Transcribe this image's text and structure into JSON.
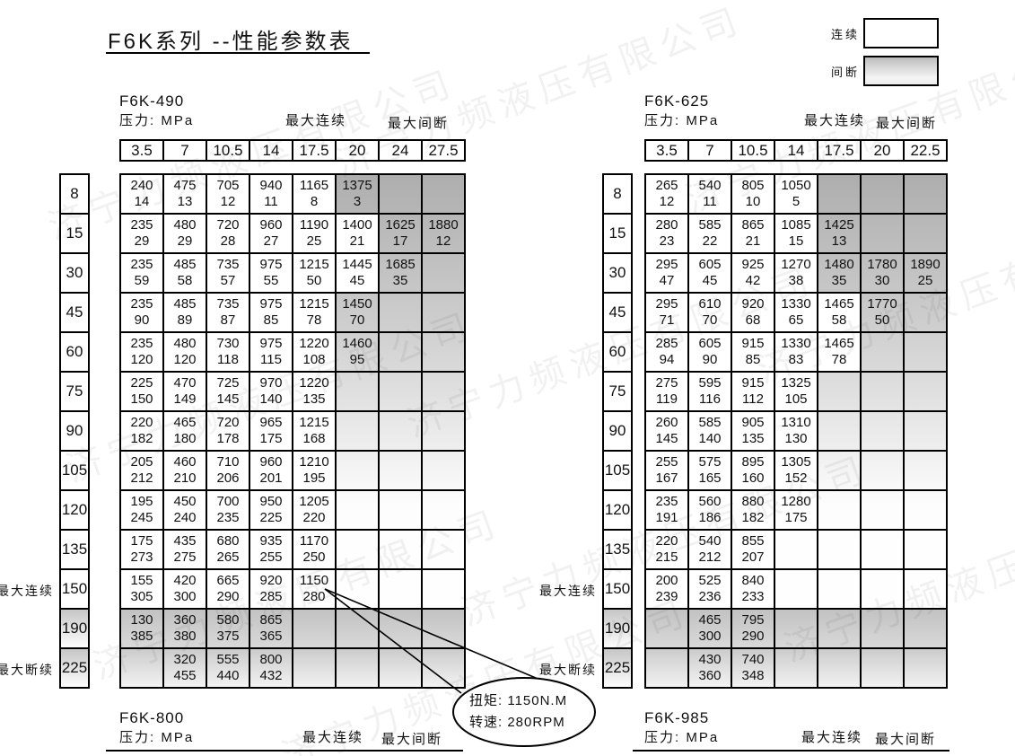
{
  "title": "F6K系列 --性能参数表",
  "legend": {
    "continuous": "连续",
    "intermittent": "间断"
  },
  "labels": {
    "pressure": "压力: MPa",
    "max_continuous": "最大连续",
    "max_intermittent": "最大间断",
    "row_max_continuous": "最大连续",
    "row_max_interrupt": "最大断续"
  },
  "callout": {
    "torque": "扭矩: 1150N.M",
    "speed": "转速: 280RPM"
  },
  "watermark": "济宁力频液压有限公司",
  "tables": [
    {
      "name": "F6K-490",
      "columns": [
        "3.5",
        "7",
        "10.5",
        "14",
        "17.5",
        "20",
        "24",
        "27.5"
      ],
      "rows": [
        {
          "speed": "8",
          "white": 5,
          "cells": [
            [
              "240",
              "14"
            ],
            [
              "475",
              "13"
            ],
            [
              "705",
              "12"
            ],
            [
              "940",
              "11"
            ],
            [
              "1165",
              "8"
            ],
            [
              "1375",
              "3"
            ]
          ]
        },
        {
          "speed": "15",
          "white": 6,
          "cells": [
            [
              "235",
              "29"
            ],
            [
              "480",
              "29"
            ],
            [
              "720",
              "28"
            ],
            [
              "960",
              "27"
            ],
            [
              "1190",
              "25"
            ],
            [
              "1400",
              "21"
            ],
            [
              "1625",
              "17"
            ],
            [
              "1880",
              "12"
            ]
          ]
        },
        {
          "speed": "30",
          "white": 6,
          "cells": [
            [
              "235",
              "59"
            ],
            [
              "485",
              "58"
            ],
            [
              "735",
              "57"
            ],
            [
              "975",
              "55"
            ],
            [
              "1215",
              "50"
            ],
            [
              "1445",
              "45"
            ],
            [
              "1685",
              "35"
            ]
          ]
        },
        {
          "speed": "45",
          "white": 5,
          "cells": [
            [
              "235",
              "90"
            ],
            [
              "485",
              "89"
            ],
            [
              "735",
              "87"
            ],
            [
              "975",
              "85"
            ],
            [
              "1215",
              "78"
            ],
            [
              "1450",
              "70"
            ]
          ]
        },
        {
          "speed": "60",
          "white": 5,
          "cells": [
            [
              "235",
              "120"
            ],
            [
              "480",
              "120"
            ],
            [
              "730",
              "118"
            ],
            [
              "975",
              "115"
            ],
            [
              "1220",
              "108"
            ],
            [
              "1460",
              "95"
            ]
          ]
        },
        {
          "speed": "75",
          "white": 5,
          "cells": [
            [
              "225",
              "150"
            ],
            [
              "470",
              "149"
            ],
            [
              "725",
              "145"
            ],
            [
              "970",
              "140"
            ],
            [
              "1220",
              "135"
            ]
          ]
        },
        {
          "speed": "90",
          "white": 5,
          "cells": [
            [
              "220",
              "182"
            ],
            [
              "465",
              "180"
            ],
            [
              "720",
              "178"
            ],
            [
              "965",
              "175"
            ],
            [
              "1215",
              "168"
            ]
          ]
        },
        {
          "speed": "105",
          "white": 5,
          "cells": [
            [
              "205",
              "212"
            ],
            [
              "460",
              "210"
            ],
            [
              "710",
              "206"
            ],
            [
              "960",
              "201"
            ],
            [
              "1210",
              "195"
            ]
          ]
        },
        {
          "speed": "120",
          "white": 5,
          "cells": [
            [
              "195",
              "245"
            ],
            [
              "450",
              "240"
            ],
            [
              "700",
              "235"
            ],
            [
              "950",
              "225"
            ],
            [
              "1205",
              "220"
            ]
          ]
        },
        {
          "speed": "135",
          "white": 5,
          "cells": [
            [
              "175",
              "273"
            ],
            [
              "435",
              "275"
            ],
            [
              "680",
              "265"
            ],
            [
              "935",
              "255"
            ],
            [
              "1170",
              "250"
            ]
          ]
        },
        {
          "speed": "150",
          "white": 5,
          "cells": [
            [
              "155",
              "305"
            ],
            [
              "420",
              "300"
            ],
            [
              "665",
              "290"
            ],
            [
              "920",
              "285"
            ],
            [
              "1150",
              "280"
            ]
          ]
        },
        {
          "speed": "190",
          "white": 0,
          "band": true,
          "cells": [
            [
              "130",
              "385"
            ],
            [
              "360",
              "380"
            ],
            [
              "580",
              "375"
            ],
            [
              "865",
              "365"
            ]
          ]
        },
        {
          "speed": "225",
          "white": 0,
          "band": true,
          "cells": [
            null,
            [
              "320",
              "455"
            ],
            [
              "555",
              "440"
            ],
            [
              "800",
              "432"
            ]
          ]
        }
      ]
    },
    {
      "name": "F6K-625",
      "columns": [
        "3.5",
        "7",
        "10.5",
        "14",
        "17.5",
        "20",
        "22.5"
      ],
      "rows": [
        {
          "speed": "8",
          "white": 4,
          "cells": [
            [
              "265",
              "12"
            ],
            [
              "540",
              "11"
            ],
            [
              "805",
              "10"
            ],
            [
              "1050",
              "5"
            ]
          ]
        },
        {
          "speed": "15",
          "white": 4,
          "cells": [
            [
              "280",
              "23"
            ],
            [
              "585",
              "22"
            ],
            [
              "865",
              "21"
            ],
            [
              "1085",
              "15"
            ],
            [
              "1425",
              "13"
            ]
          ]
        },
        {
          "speed": "30",
          "white": 4,
          "cells": [
            [
              "295",
              "47"
            ],
            [
              "605",
              "45"
            ],
            [
              "925",
              "42"
            ],
            [
              "1270",
              "38"
            ],
            [
              "1480",
              "35"
            ],
            [
              "1780",
              "30"
            ],
            [
              "1890",
              "25"
            ]
          ]
        },
        {
          "speed": "45",
          "white": 5,
          "cells": [
            [
              "295",
              "71"
            ],
            [
              "610",
              "70"
            ],
            [
              "920",
              "68"
            ],
            [
              "1330",
              "65"
            ],
            [
              "1465",
              "58"
            ],
            [
              "1770",
              "50"
            ]
          ]
        },
        {
          "speed": "60",
          "white": 5,
          "cells": [
            [
              "285",
              "94"
            ],
            [
              "605",
              "90"
            ],
            [
              "915",
              "85"
            ],
            [
              "1330",
              "83"
            ],
            [
              "1465",
              "78"
            ]
          ]
        },
        {
          "speed": "75",
          "white": 4,
          "cells": [
            [
              "275",
              "119"
            ],
            [
              "595",
              "116"
            ],
            [
              "915",
              "112"
            ],
            [
              "1325",
              "105"
            ]
          ]
        },
        {
          "speed": "90",
          "white": 4,
          "cells": [
            [
              "260",
              "145"
            ],
            [
              "585",
              "140"
            ],
            [
              "905",
              "135"
            ],
            [
              "1310",
              "130"
            ]
          ]
        },
        {
          "speed": "105",
          "white": 4,
          "cells": [
            [
              "255",
              "167"
            ],
            [
              "575",
              "165"
            ],
            [
              "895",
              "160"
            ],
            [
              "1305",
              "152"
            ]
          ]
        },
        {
          "speed": "120",
          "white": 4,
          "cells": [
            [
              "235",
              "191"
            ],
            [
              "560",
              "186"
            ],
            [
              "880",
              "182"
            ],
            [
              "1280",
              "175"
            ]
          ]
        },
        {
          "speed": "135",
          "white": 3,
          "cells": [
            [
              "220",
              "215"
            ],
            [
              "540",
              "212"
            ],
            [
              "855",
              "207"
            ]
          ]
        },
        {
          "speed": "150",
          "white": 3,
          "cells": [
            [
              "200",
              "239"
            ],
            [
              "525",
              "236"
            ],
            [
              "840",
              "233"
            ]
          ]
        },
        {
          "speed": "190",
          "white": 0,
          "band": true,
          "cells": [
            null,
            [
              "465",
              "300"
            ],
            [
              "795",
              "290"
            ]
          ]
        },
        {
          "speed": "225",
          "white": 0,
          "band": true,
          "cells": [
            null,
            [
              "430",
              "360"
            ],
            [
              "740",
              "348"
            ]
          ]
        }
      ]
    }
  ],
  "footer_tables": [
    {
      "name": "F6K-800"
    },
    {
      "name": "F6K-985"
    }
  ]
}
